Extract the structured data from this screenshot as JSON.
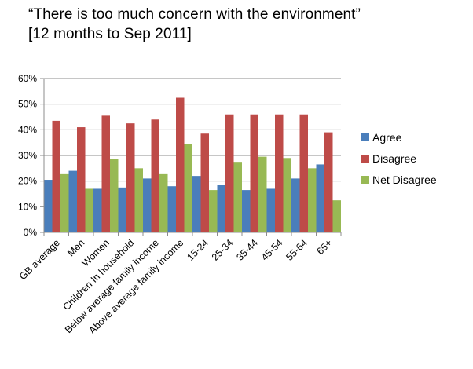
{
  "title": {
    "line1": "“There is too much concern with the environment”",
    "line2": "[12 months to Sep 2011]"
  },
  "chart_data": {
    "type": "bar",
    "categories": [
      "GB average",
      "Men",
      "Women",
      "Children In household",
      "Below average family income",
      "Above average family income",
      "15-24",
      "25-34",
      "35-44",
      "45-54",
      "55-64",
      "65+"
    ],
    "series": [
      {
        "name": "Agree",
        "color": "#4a7ebb",
        "values": [
          20.5,
          24,
          17,
          17.5,
          21,
          18,
          22,
          18.5,
          16.5,
          17,
          21,
          26.5
        ]
      },
      {
        "name": "Disagree",
        "color": "#be4b48",
        "values": [
          43.5,
          41,
          45.5,
          42.5,
          44,
          52.5,
          38.5,
          46,
          46,
          46,
          46,
          39
        ]
      },
      {
        "name": "Net Disagree",
        "color": "#98b954",
        "values": [
          23,
          17,
          28.5,
          25,
          23,
          34.5,
          16.5,
          27.5,
          29.5,
          29,
          25,
          12.5
        ]
      }
    ],
    "y_ticks": [
      "0%",
      "10%",
      "20%",
      "30%",
      "40%",
      "50%",
      "60%"
    ],
    "ylim": [
      0,
      60
    ],
    "grid": true,
    "legend": "right"
  }
}
